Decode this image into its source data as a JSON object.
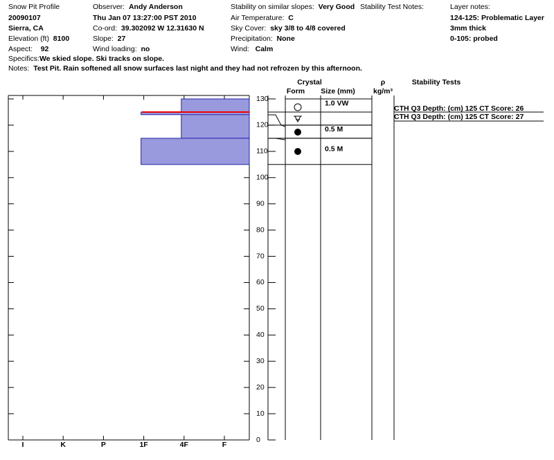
{
  "header": {
    "title": "Snow Pit Profile",
    "date": "20090107",
    "location": "Sierra, CA",
    "elevation_label": "Elevation (ft)",
    "elevation": "8100",
    "aspect_label": "Aspect:",
    "aspect": "92",
    "observer_label": "Observer:",
    "observer": "Andy Anderson",
    "datetime": "Thu Jan 07 13:27:00 PST 2010",
    "coord_label": "Co-ord:",
    "coord": "39.302092 W 12.31630 N",
    "slope_label": "Slope:",
    "slope": "27",
    "wind_loading_label": "Wind loading:",
    "wind_loading": "no",
    "stability_label": "Stability on similar slopes:",
    "stability": "Very Good",
    "air_temp_label": "Air Temperature:",
    "air_temp": "C",
    "sky_label": "Sky Cover:",
    "sky": "sky 3/8 to 4/8 covered",
    "precip_label": "Precipitation:",
    "precip": "None",
    "wind_label": "Wind:",
    "wind": "Calm",
    "test_notes_label": "Stability Test Notes:",
    "layer_notes_label": "Layer notes:",
    "layer_notes": [
      "124-125: Problematic Layer",
      "3mm thick",
      "0-105: probed"
    ],
    "specifics_label": "Specifics:",
    "specifics": "We skied slope. Ski tracks on slope.",
    "notes_label": "Notes:",
    "notes": "Test Pit. Rain softened all snow surfaces last night and they had not refrozen by this afternoon."
  },
  "profile": {
    "depth_lim": [
      0,
      130
    ],
    "depth_ticks": [
      0,
      10,
      20,
      30,
      40,
      50,
      60,
      70,
      80,
      90,
      100,
      110,
      120,
      130
    ],
    "hardness_labels": [
      "I",
      "K",
      "P",
      "1F",
      "4F",
      "F"
    ],
    "layers": [
      {
        "top": 130,
        "bottom": 115,
        "hardness": "4F"
      },
      {
        "top": 125,
        "bottom": 124,
        "hardness": "1F"
      },
      {
        "top": 115,
        "bottom": 105,
        "hardness": "1F"
      }
    ],
    "problem_depth": 125
  },
  "table": {
    "crystal": "Crystal",
    "form": "Form",
    "size": "Size (mm)",
    "rho": "ρ",
    "density_unit": "kg/m³",
    "tests_title": "Stability Tests",
    "rows": [
      {
        "top": 130,
        "bottom": 125,
        "size": "1.0 VW"
      },
      {
        "top": 125,
        "bottom": 120
      },
      {
        "top": 120,
        "bottom": 115,
        "size": "0.5 M"
      },
      {
        "top": 115,
        "bottom": 105,
        "size": "0.5 M"
      }
    ],
    "tests": [
      "CTH Q3 Depth: (cm) 125 CT Score: 26",
      "CTH Q3 Depth: (cm) 125 CT Score: 27"
    ]
  }
}
